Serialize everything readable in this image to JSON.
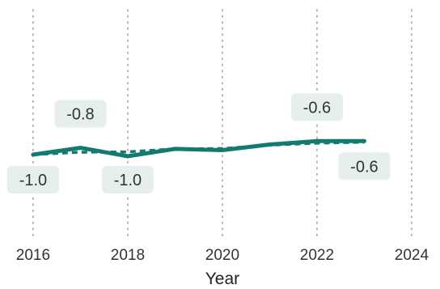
{
  "chart_data": {
    "type": "line",
    "xlabel": "Year",
    "ylabel": "",
    "xlim": [
      2015.3,
      2024.6
    ],
    "ylim": [
      -3.5,
      3.3
    ],
    "x_ticks": [
      2016,
      2018,
      2020,
      2022,
      2024
    ],
    "x_tick_labels": [
      "2016",
      "2018",
      "2020",
      "2022",
      "2024"
    ],
    "grid": "vertical dotted",
    "series": [
      {
        "style": "solid",
        "color": "#137a6f",
        "x": [
          2016,
          2017,
          2018,
          2019,
          2020,
          2021,
          2022,
          2023
        ],
        "y": [
          -1.0,
          -0.8,
          -1.05,
          -0.83,
          -0.87,
          -0.7,
          -0.6,
          -0.6
        ]
      },
      {
        "style": "dashed",
        "color": "#137a6f",
        "x": [
          2016,
          2017,
          2018,
          2019,
          2020,
          2021,
          2022,
          2023
        ],
        "y": [
          -1.0,
          -0.93,
          -0.92,
          -0.83,
          -0.82,
          -0.72,
          -0.66,
          -0.63
        ]
      }
    ],
    "annotations": [
      {
        "text": "-1.0",
        "x": 2016,
        "y": -1.0,
        "position": "below"
      },
      {
        "text": "-0.8",
        "x": 2017,
        "y": -0.8,
        "position": "above"
      },
      {
        "text": "-1.0",
        "x": 2018,
        "y": -1.0,
        "position": "below"
      },
      {
        "text": "-0.6",
        "x": 2022,
        "y": -0.6,
        "position": "above"
      },
      {
        "text": "-0.6",
        "x": 2023,
        "y": -0.6,
        "position": "below"
      }
    ]
  }
}
